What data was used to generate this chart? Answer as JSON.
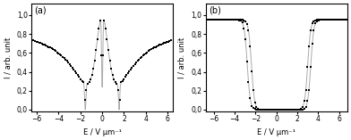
{
  "panel_a": {
    "label": "(a)",
    "xlim": [
      -6.5,
      6.5
    ],
    "ylim": [
      -0.02,
      1.12
    ],
    "xticks": [
      -6,
      -4,
      -2,
      0,
      2,
      4,
      6
    ],
    "yticks": [
      0.0,
      0.2,
      0.4,
      0.6,
      0.8,
      1.0
    ],
    "xlabel": "E / V μm⁻¹",
    "ylabel": "I / arb. unit"
  },
  "panel_b": {
    "label": "(b)",
    "xlim": [
      -6.8,
      6.8
    ],
    "ylim": [
      -0.02,
      1.12
    ],
    "xticks": [
      -6,
      -4,
      -2,
      0,
      2,
      4,
      6
    ],
    "yticks": [
      0.0,
      0.2,
      0.4,
      0.6,
      0.8,
      1.0
    ],
    "xlabel": "E / V μm⁻¹",
    "ylabel": "I / arb. unit"
  },
  "line_color": "#aaaaaa",
  "marker_color": "black",
  "marker": "s",
  "marker_size": 1.8,
  "line_width": 0.7,
  "figsize": [
    3.92,
    1.57
  ],
  "dpi": 100
}
